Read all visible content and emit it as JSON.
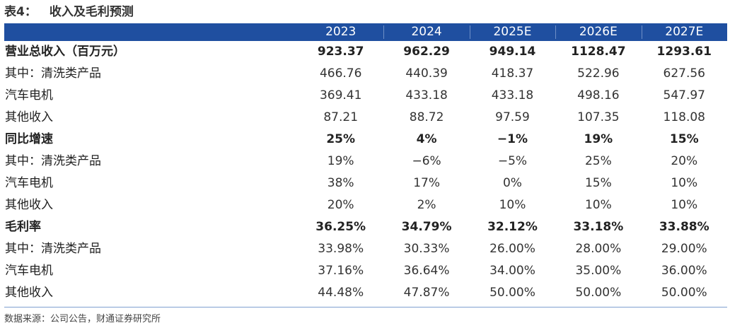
{
  "title": {
    "number": "表4：",
    "text": "收入及毛利预测"
  },
  "header": {
    "label": "",
    "years": [
      "2023",
      "2024",
      "2025E",
      "2026E",
      "2027E"
    ]
  },
  "rows": [
    {
      "label": "营业总收入（百万元）",
      "bold": true,
      "values": [
        "923.37",
        "962.29",
        "949.14",
        "1128.47",
        "1293.61"
      ]
    },
    {
      "label": "其中：清洗类产品",
      "bold": false,
      "values": [
        "466.76",
        "440.39",
        "418.37",
        "522.96",
        "627.56"
      ]
    },
    {
      "label": "汽车电机",
      "bold": false,
      "values": [
        "369.41",
        "433.18",
        "433.18",
        "498.16",
        "547.97"
      ]
    },
    {
      "label": "其他收入",
      "bold": false,
      "values": [
        "87.21",
        "88.72",
        "97.59",
        "107.35",
        "118.08"
      ]
    },
    {
      "label": "同比增速",
      "bold": true,
      "values": [
        "25%",
        "4%",
        "−1%",
        "19%",
        "15%"
      ]
    },
    {
      "label": "其中：清洗类产品",
      "bold": false,
      "values": [
        "19%",
        "−6%",
        "−5%",
        "25%",
        "20%"
      ]
    },
    {
      "label": "汽车电机",
      "bold": false,
      "values": [
        "38%",
        "17%",
        "0%",
        "15%",
        "10%"
      ]
    },
    {
      "label": "其他收入",
      "bold": false,
      "values": [
        "20%",
        "2%",
        "10%",
        "10%",
        "10%"
      ]
    },
    {
      "label": "毛利率",
      "bold": true,
      "values": [
        "36.25%",
        "34.79%",
        "32.12%",
        "33.18%",
        "33.88%"
      ]
    },
    {
      "label": "其中：清洗类产品",
      "bold": false,
      "values": [
        "33.98%",
        "30.33%",
        "26.00%",
        "28.00%",
        "29.00%"
      ]
    },
    {
      "label": "汽车电机",
      "bold": false,
      "values": [
        "37.16%",
        "36.64%",
        "34.00%",
        "35.00%",
        "36.00%"
      ]
    },
    {
      "label": "其他收入",
      "bold": false,
      "values": [
        "44.48%",
        "47.87%",
        "50.00%",
        "50.00%",
        "50.00%"
      ]
    }
  ],
  "source": "数据来源：公司公告，财通证券研究所",
  "colors": {
    "header_bg": "#1f4fa0",
    "header_text": "#ffffff",
    "rule": "#7f9fd0"
  }
}
